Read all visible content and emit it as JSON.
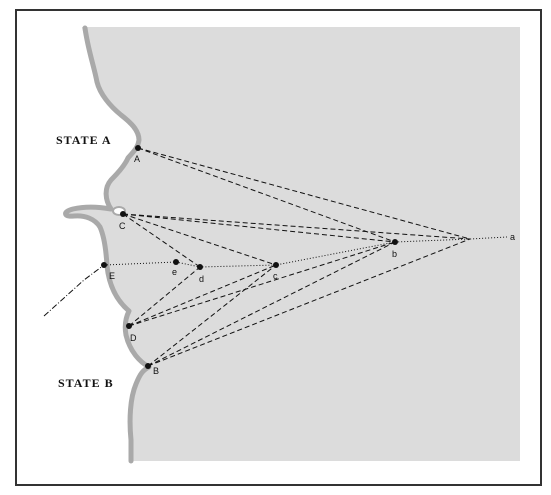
{
  "map": {
    "state_a_label": "STATE A",
    "state_b_label": "STATE B",
    "points": {
      "A": "A",
      "B": "B",
      "C": "C",
      "D": "D",
      "E": "E",
      "b": "b",
      "c": "c",
      "d": "d",
      "e": "e",
      "a": "a"
    },
    "colors": {
      "sea": "#dcdcdc",
      "coast": "#a9a9a9",
      "land": "#ffffff",
      "lines": "#111111",
      "frame": "#333333"
    }
  }
}
